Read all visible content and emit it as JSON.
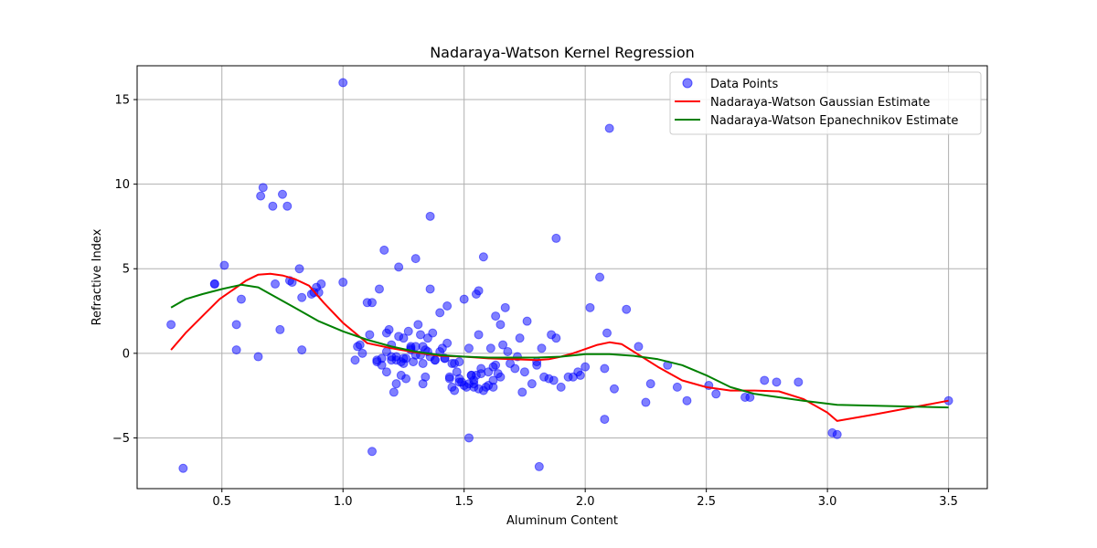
{
  "chart_data": {
    "type": "scatter",
    "title": "Nadaraya-Watson Kernel Regression",
    "xlabel": "Aluminum Content",
    "ylabel": "Refractive Index",
    "xlim": [
      0.15,
      3.66
    ],
    "ylim": [
      -8.0,
      17.0
    ],
    "xticks": [
      0.5,
      1.0,
      1.5,
      2.0,
      2.5,
      3.0,
      3.5
    ],
    "xtick_labels": [
      "0.5",
      "1.0",
      "1.5",
      "2.0",
      "2.5",
      "3.0",
      "3.5"
    ],
    "yticks": [
      -5,
      0,
      5,
      10,
      15
    ],
    "ytick_labels": [
      "−5",
      "0",
      "5",
      "10",
      "15"
    ],
    "grid": true,
    "legend_position": "top-right",
    "legend": [
      "Data Points",
      "Nadaraya-Watson Gaussian Estimate",
      "Nadaraya-Watson Epanechnikov Estimate"
    ],
    "colors": {
      "points": "#0000ff",
      "gaussian": "#ff0000",
      "epanechnikov": "#008000",
      "grid": "#b0b0b0"
    },
    "points": {
      "name": "Data Points",
      "x": [
        0.29,
        0.34,
        0.47,
        0.47,
        0.51,
        0.56,
        0.56,
        0.58,
        0.65,
        0.66,
        0.67,
        0.71,
        0.72,
        0.74,
        0.75,
        0.77,
        0.78,
        0.79,
        0.82,
        0.83,
        0.83,
        0.87,
        0.88,
        0.89,
        0.9,
        0.91,
        1.0,
        1.0,
        1.05,
        1.06,
        1.07,
        1.08,
        1.1,
        1.11,
        1.12,
        1.14,
        1.15,
        1.16,
        1.17,
        1.18,
        1.19,
        1.2,
        1.21,
        1.22,
        1.23,
        1.23,
        1.24,
        1.25,
        1.26,
        1.27,
        1.28,
        1.29,
        1.3,
        1.31,
        1.32,
        1.33,
        1.34,
        1.35,
        1.36,
        1.36,
        1.37,
        1.38,
        1.4,
        1.41,
        1.42,
        1.43,
        1.44,
        1.45,
        1.46,
        1.47,
        1.48,
        1.49,
        1.5,
        1.51,
        1.52,
        1.53,
        1.54,
        1.54,
        1.55,
        1.56,
        1.56,
        1.57,
        1.58,
        1.59,
        1.6,
        1.61,
        1.62,
        1.63,
        1.64,
        1.65,
        1.66,
        1.67,
        1.69,
        1.71,
        1.73,
        1.74,
        1.76,
        1.78,
        1.8,
        1.81,
        1.82,
        1.83,
        1.86,
        1.87,
        1.88,
        1.9,
        1.93,
        1.97,
        1.98,
        2.0,
        2.02,
        2.06,
        2.08,
        2.08,
        2.09,
        2.1,
        2.12,
        2.17,
        2.22,
        2.25,
        2.27,
        2.34,
        2.38,
        2.42,
        2.51,
        2.54,
        2.66,
        2.68,
        2.74,
        2.79,
        2.88,
        3.02,
        3.04,
        3.5,
        1.12,
        1.14,
        1.16,
        1.18,
        1.2,
        1.22,
        1.24,
        1.26,
        1.28,
        1.3,
        1.32,
        1.34,
        1.36,
        1.38,
        1.4,
        1.42,
        1.44,
        1.46,
        1.48,
        1.5,
        1.52,
        1.54,
        1.56,
        1.58,
        1.6,
        1.62,
        1.25,
        1.3,
        1.35,
        1.45,
        1.55,
        1.65,
        1.75,
        1.85,
        1.95,
        1.28,
        1.33,
        1.43,
        1.53,
        1.63,
        1.22,
        1.18,
        1.33,
        1.48,
        1.52,
        1.57,
        1.62,
        1.68,
        1.72,
        1.8,
        1.88,
        1.2,
        1.25
      ],
      "y": [
        1.7,
        -6.8,
        4.1,
        4.1,
        5.2,
        1.7,
        0.2,
        3.2,
        -0.2,
        9.3,
        9.8,
        8.7,
        4.1,
        1.4,
        9.4,
        8.7,
        4.3,
        4.2,
        5.0,
        3.3,
        0.2,
        3.5,
        3.6,
        3.9,
        3.6,
        4.1,
        16.0,
        4.2,
        -0.4,
        0.4,
        0.5,
        0.0,
        3.0,
        1.1,
        3.0,
        -0.5,
        3.8,
        -0.7,
        6.1,
        1.2,
        1.4,
        0.5,
        -2.3,
        -1.8,
        1.0,
        5.1,
        -1.3,
        0.9,
        -1.5,
        1.3,
        0.4,
        -0.5,
        5.6,
        1.7,
        1.1,
        -1.8,
        -1.4,
        0.9,
        3.8,
        8.1,
        1.2,
        -0.4,
        2.4,
        0.3,
        -0.3,
        2.8,
        -1.4,
        -2.0,
        -2.2,
        -1.1,
        -0.5,
        -1.7,
        3.2,
        -2.0,
        0.3,
        -1.3,
        -1.8,
        -2.0,
        3.5,
        3.7,
        1.1,
        -0.9,
        5.7,
        -2.0,
        -1.1,
        0.3,
        -2.0,
        2.2,
        -1.2,
        1.7,
        0.5,
        2.7,
        -0.6,
        -0.9,
        0.9,
        -2.3,
        1.9,
        -1.8,
        -0.7,
        -6.7,
        0.3,
        -1.4,
        1.1,
        -1.6,
        6.8,
        -2.0,
        -1.4,
        -1.1,
        -1.3,
        -0.8,
        2.7,
        4.5,
        -3.9,
        -0.9,
        1.2,
        13.3,
        -2.1,
        2.6,
        0.4,
        -2.9,
        -1.8,
        -0.7,
        -2.0,
        -2.8,
        -1.9,
        -2.4,
        -2.6,
        -2.6,
        -1.6,
        -1.7,
        -1.7,
        -4.7,
        -4.8,
        -2.8,
        -5.8,
        -0.4,
        -0.3,
        0.1,
        -0.4,
        -0.2,
        -0.5,
        -0.3,
        0.2,
        0.4,
        -0.1,
        0.2,
        -0.2,
        -0.4,
        0.1,
        -0.3,
        -1.5,
        -0.6,
        -1.7,
        -1.9,
        -1.8,
        -1.6,
        -2.1,
        -2.2,
        -1.9,
        -1.6,
        -0.3,
        -0.1,
        0.1,
        -0.6,
        -1.3,
        -1.4,
        -1.1,
        -1.5,
        -1.4,
        0.3,
        0.4,
        0.6,
        -1.3,
        -0.7,
        -0.4,
        -1.1,
        -0.6,
        -1.5,
        -5.0,
        -1.2,
        -0.8,
        0.1,
        -0.2,
        -0.5,
        0.9,
        -0.2,
        -0.6
      ]
    },
    "series": [
      {
        "name": "Nadaraya-Watson Gaussian Estimate",
        "x": [
          0.29,
          0.35,
          0.42,
          0.49,
          0.55,
          0.6,
          0.65,
          0.7,
          0.75,
          0.8,
          0.86,
          0.92,
          1.0,
          1.1,
          1.2,
          1.3,
          1.4,
          1.5,
          1.6,
          1.7,
          1.8,
          1.85,
          1.9,
          1.95,
          2.0,
          2.05,
          2.1,
          2.15,
          2.2,
          2.3,
          2.4,
          2.5,
          2.6,
          2.7,
          2.8,
          2.9,
          3.0,
          3.04,
          3.2,
          3.5
        ],
        "y": [
          0.2,
          1.2,
          2.2,
          3.2,
          3.8,
          4.3,
          4.65,
          4.7,
          4.6,
          4.4,
          4.0,
          3.0,
          1.8,
          0.6,
          0.3,
          0.05,
          -0.15,
          -0.2,
          -0.3,
          -0.35,
          -0.4,
          -0.35,
          -0.2,
          0.0,
          0.25,
          0.5,
          0.65,
          0.55,
          0.1,
          -0.8,
          -1.6,
          -2.0,
          -2.2,
          -2.2,
          -2.25,
          -2.7,
          -3.5,
          -4.0,
          -3.6,
          -2.8
        ]
      },
      {
        "name": "Nadaraya-Watson Epanechnikov Estimate",
        "x": [
          0.29,
          0.35,
          0.42,
          0.5,
          0.58,
          0.65,
          0.7,
          0.8,
          0.9,
          1.0,
          1.1,
          1.2,
          1.3,
          1.4,
          1.5,
          1.6,
          1.7,
          1.8,
          1.9,
          2.0,
          2.1,
          2.2,
          2.3,
          2.4,
          2.5,
          2.6,
          2.7,
          2.8,
          2.9,
          3.04,
          3.2,
          3.5
        ],
        "y": [
          2.7,
          3.2,
          3.5,
          3.8,
          4.05,
          3.9,
          3.5,
          2.7,
          1.9,
          1.3,
          0.8,
          0.4,
          0.1,
          -0.1,
          -0.2,
          -0.25,
          -0.25,
          -0.25,
          -0.2,
          -0.05,
          -0.05,
          -0.15,
          -0.35,
          -0.7,
          -1.3,
          -2.0,
          -2.4,
          -2.6,
          -2.8,
          -3.05,
          -3.1,
          -3.2
        ]
      }
    ]
  }
}
